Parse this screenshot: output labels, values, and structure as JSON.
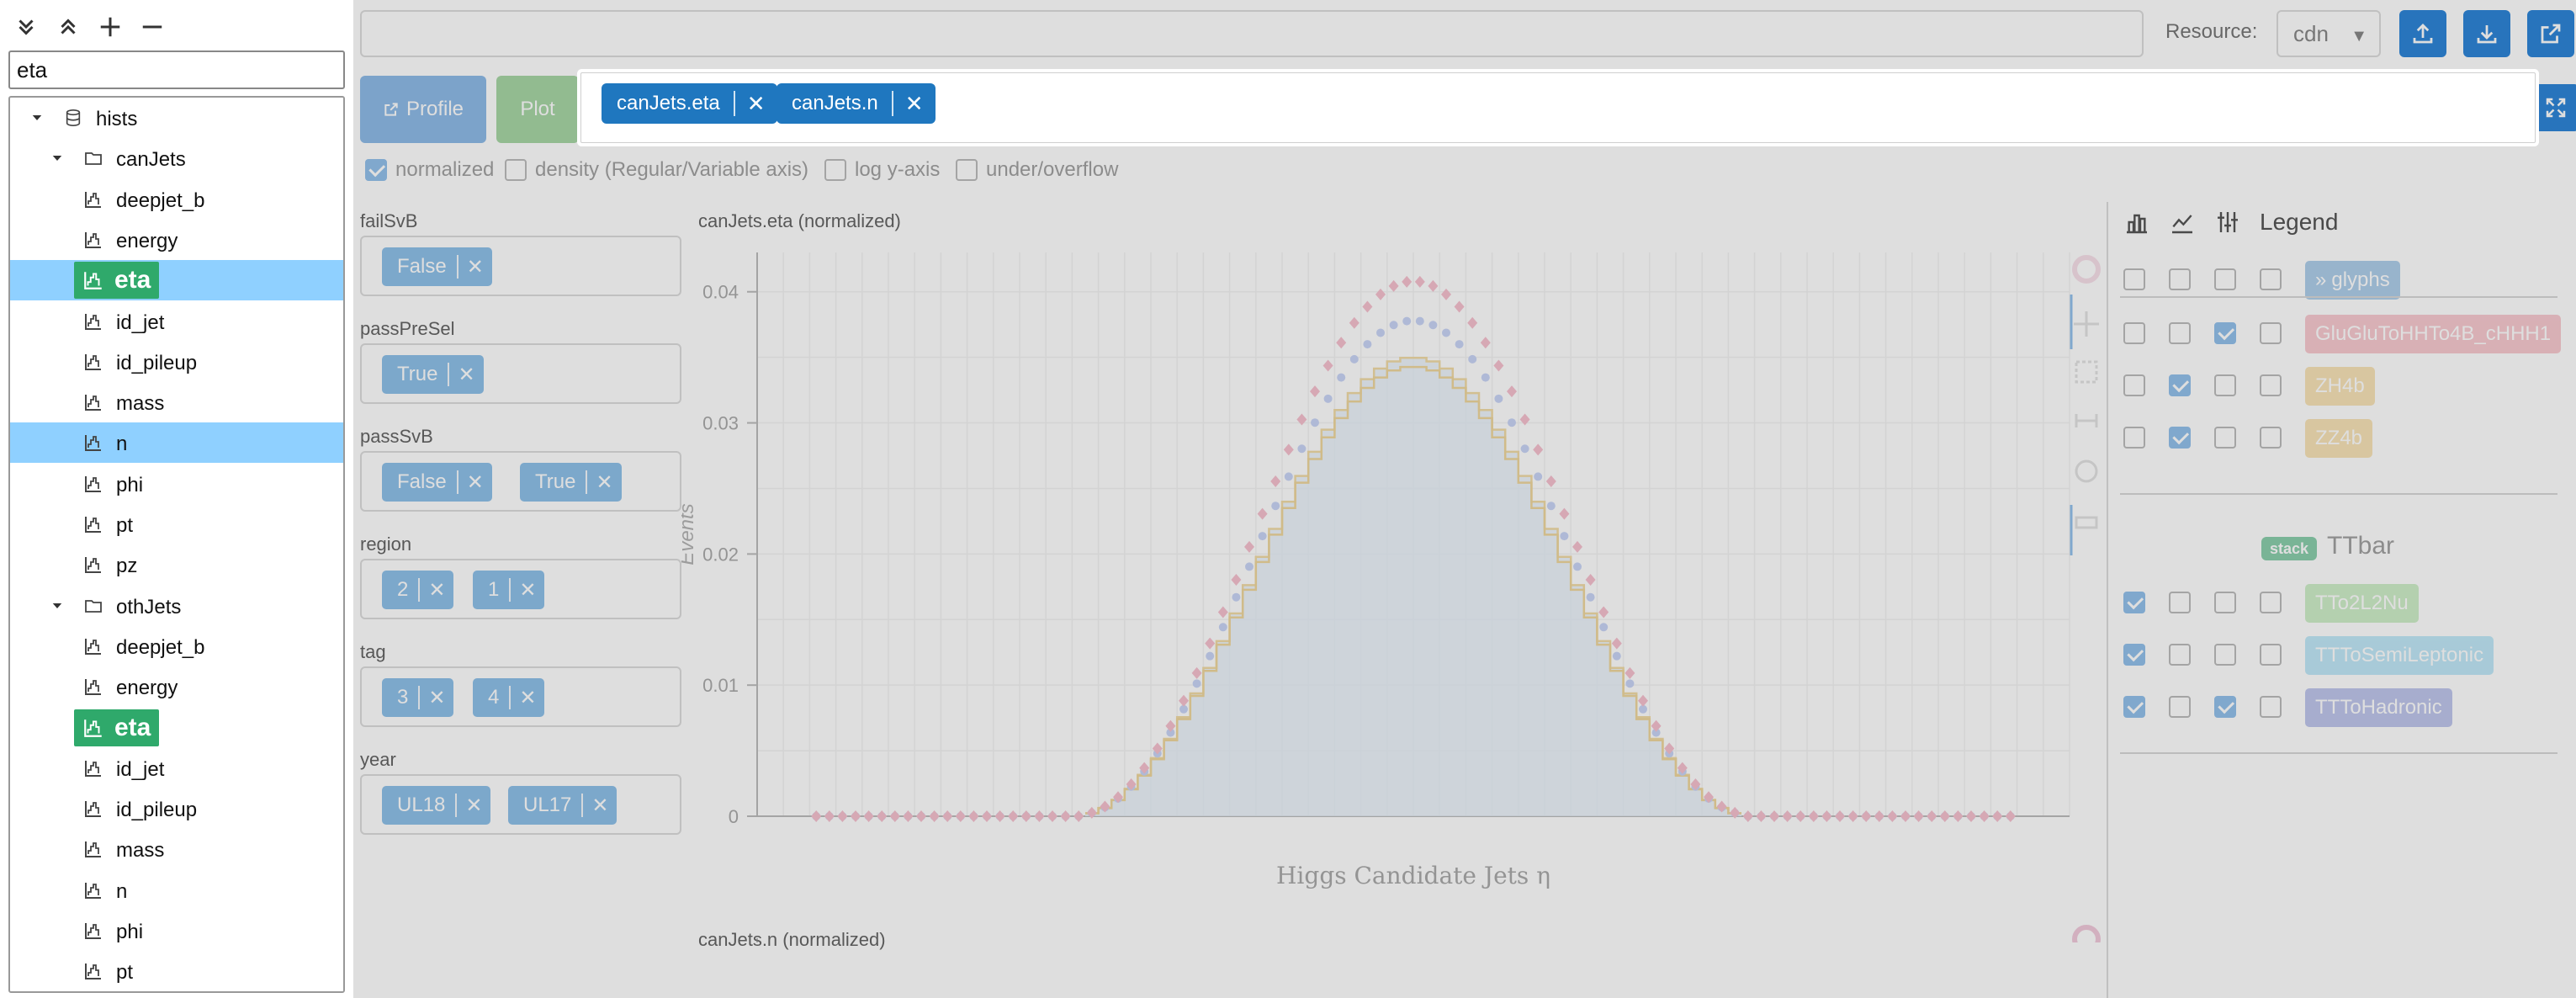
{
  "search": {
    "value": "eta"
  },
  "tree": {
    "root": "hists",
    "groups": [
      {
        "name": "canJets",
        "items": [
          "deepjet_b",
          "energy",
          "eta",
          "id_jet",
          "id_pileup",
          "mass",
          "n",
          "phi",
          "pt",
          "pz"
        ],
        "highlighted": "eta",
        "selected": [
          "eta",
          "n"
        ]
      },
      {
        "name": "othJets",
        "items": [
          "deepjet_b",
          "energy",
          "eta",
          "id_jet",
          "id_pileup",
          "mass",
          "n",
          "phi",
          "pt"
        ],
        "highlighted": "eta",
        "selected": []
      }
    ]
  },
  "header": {
    "resource_label": "Resource:",
    "resource_value": "cdn"
  },
  "actions": {
    "profile": "Profile",
    "plot": "Plot"
  },
  "selected_hists": [
    {
      "label": "canJets.eta"
    },
    {
      "label": "canJets.n"
    }
  ],
  "options": [
    {
      "label": "normalized",
      "checked": true
    },
    {
      "label": "density (Regular/Variable axis)",
      "checked": false
    },
    {
      "label": "log y-axis",
      "checked": false
    },
    {
      "label": "under/overflow",
      "checked": false
    }
  ],
  "filters": [
    {
      "name": "failSvB",
      "values": [
        "False"
      ]
    },
    {
      "name": "passPreSel",
      "values": [
        "True"
      ]
    },
    {
      "name": "passSvB",
      "values": [
        "False",
        "True"
      ]
    },
    {
      "name": "region",
      "values": [
        "2",
        "1"
      ]
    },
    {
      "name": "tag",
      "values": [
        "3",
        "4"
      ]
    },
    {
      "name": "year",
      "values": [
        "UL18",
        "UL17"
      ]
    }
  ],
  "plots": [
    {
      "title": "canJets.eta (normalized)"
    },
    {
      "title": "canJets.n (normalized)"
    }
  ],
  "chart_data": {
    "type": "line",
    "title": "canJets.eta (normalized)",
    "xlabel": "Higgs Candidate Jets η",
    "ylabel": "Events",
    "xlim": [
      -5,
      5
    ],
    "ylim": [
      0,
      0.043
    ],
    "yticks": [
      "0",
      "0.01",
      "0.02",
      "0.03",
      "0.04"
    ],
    "x_nonzero_range": [
      -2.5,
      2.5
    ],
    "series": [
      {
        "name": "GluGluToHHTo4B_cHHH1",
        "peak": 0.0408
      },
      {
        "name": "ZH4b",
        "peak": 0.0378
      },
      {
        "name": "ZZ4b",
        "peak": 0.0378
      },
      {
        "name": "TTbar",
        "peak": 0.035
      }
    ],
    "grid": true
  },
  "legend": {
    "title": "Legend",
    "entries": [
      {
        "label": "glyphs",
        "checks": [
          false,
          false,
          false,
          false
        ],
        "color": "#6fa8dc"
      },
      {
        "label": "GluGluToHHTo4B_cHHH1",
        "checks": [
          false,
          false,
          true,
          false
        ],
        "color": "#f4a1ab"
      },
      {
        "label": "ZH4b",
        "checks": [
          false,
          true,
          false,
          false
        ],
        "color": "#f3cf7f"
      },
      {
        "label": "ZZ4b",
        "checks": [
          false,
          true,
          false,
          false
        ],
        "color": "#f3cf7f"
      }
    ],
    "stack_badge": "stack",
    "stack_name": "TTbar",
    "stack_entries": [
      {
        "label": "TTo2L2Nu",
        "checks": [
          true,
          false,
          false,
          false
        ],
        "color": "#a9e29f"
      },
      {
        "label": "TTToSemiLeptonic",
        "checks": [
          true,
          false,
          false,
          false
        ],
        "color": "#8fd8f3"
      },
      {
        "label": "TTToHadronic",
        "checks": [
          true,
          false,
          true,
          false
        ],
        "color": "#8e9be0"
      }
    ]
  }
}
